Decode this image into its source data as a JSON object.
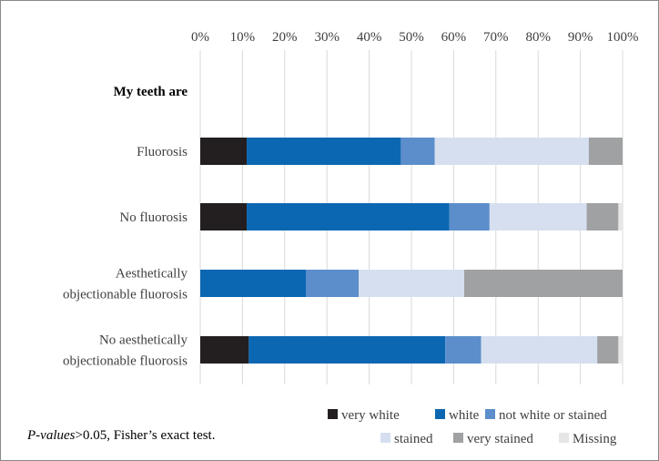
{
  "chart_data": {
    "type": "bar",
    "orientation": "horizontal",
    "stacked": true,
    "percent": true,
    "title": "",
    "xlabel": "",
    "ylabel": "",
    "axis_heading": "My teeth are",
    "xlim": [
      0,
      100
    ],
    "x_ticks": [
      "0%",
      "10%",
      "20%",
      "30%",
      "40%",
      "50%",
      "60%",
      "70%",
      "80%",
      "90%",
      "100%"
    ],
    "x_axis_position": "top",
    "grid": true,
    "legend_position": "bottom-right",
    "categories": [
      "Fluorosis",
      "No fluorosis",
      "Aesthetically objectionable fluorosis",
      "No aesthetically objectionable fluorosis"
    ],
    "category_lines": [
      [
        "Fluorosis"
      ],
      [
        "No fluorosis"
      ],
      [
        "Aesthetically",
        "objectionable fluorosis"
      ],
      [
        "No aesthetically",
        "objectionable fluorosis"
      ]
    ],
    "series": [
      {
        "name": "very white",
        "color": "#231f20",
        "values": [
          11,
          11,
          0,
          11.5
        ]
      },
      {
        "name": "white",
        "color": "#0b67b2",
        "values": [
          36.5,
          48,
          25,
          46.5
        ]
      },
      {
        "name": "not white or stained",
        "color": "#5b8ecb",
        "values": [
          8,
          9.5,
          12.5,
          8.5
        ]
      },
      {
        "name": "stained",
        "color": "#d6dff0",
        "values": [
          36.5,
          23,
          25,
          27.5
        ]
      },
      {
        "name": "very stained",
        "color": "#a0a1a3",
        "values": [
          8,
          7.5,
          37.5,
          5
        ]
      },
      {
        "name": "Missing",
        "color": "#e6e6e6",
        "values": [
          0,
          1,
          0,
          1
        ]
      }
    ]
  },
  "footnote": {
    "italic": "P-values",
    "text": ">0.05, Fisher’s exact test."
  }
}
